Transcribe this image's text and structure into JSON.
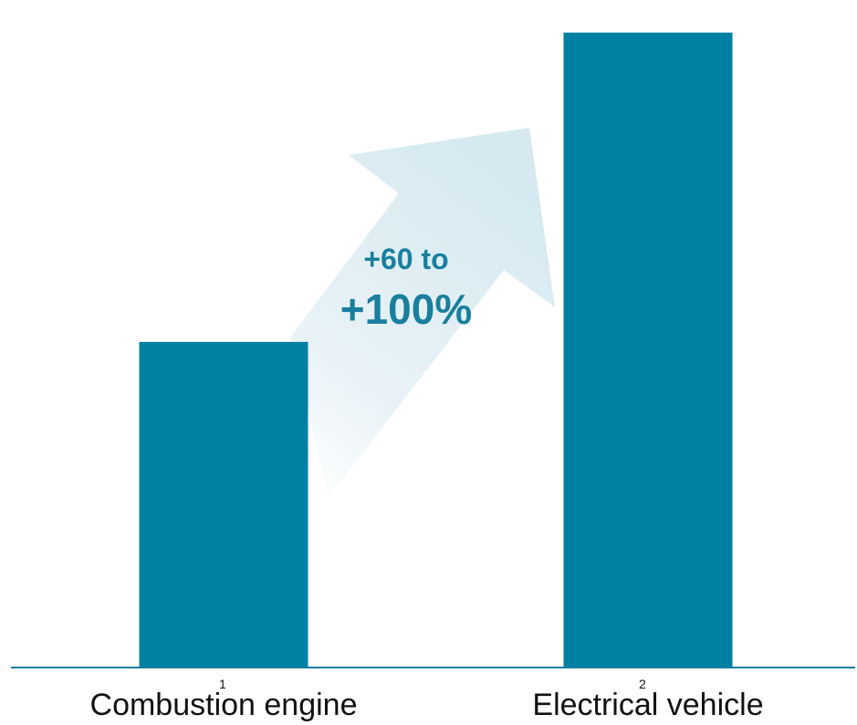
{
  "chart_data": {
    "type": "bar",
    "categories": [
      "Combustion engine",
      "Electrical vehicle"
    ],
    "footnote_markers": [
      "1",
      "2"
    ],
    "values": [
      100,
      195
    ],
    "ylim": [
      0,
      205
    ],
    "colors": {
      "bar": "#0080a3",
      "axis": "#1a7f9e",
      "arrow": "#d6e9f0",
      "annotation": "#1a7f9e"
    },
    "annotation": {
      "line1": "+60 to",
      "line2": "+100%"
    }
  }
}
